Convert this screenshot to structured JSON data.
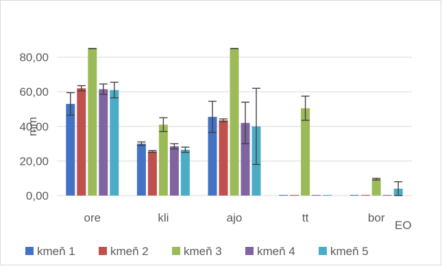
{
  "chart_data": {
    "type": "bar",
    "title": "",
    "xlabel": "EO",
    "ylabel": "mm",
    "ylim": [
      0,
      85
    ],
    "yticks": [
      "0,00",
      "20,00",
      "40,00",
      "60,00",
      "80,00"
    ],
    "ytick_values": [
      0,
      20,
      40,
      60,
      80
    ],
    "grid": true,
    "legend_position": "bottom",
    "categories": [
      "ore",
      "kli",
      "ajo",
      "tt",
      "bor"
    ],
    "series": [
      {
        "name": "kmeň 1",
        "color": "#4472c4",
        "values": [
          53,
          30,
          45.5,
          0,
          0
        ],
        "errors": [
          6.5,
          1,
          9,
          0,
          0
        ]
      },
      {
        "name": "kmeň 2",
        "color": "#c0504d",
        "values": [
          62,
          25.5,
          43.5,
          0,
          0
        ],
        "errors": [
          1.5,
          0.5,
          0.8,
          0,
          0
        ]
      },
      {
        "name": "kmeň 3",
        "color": "#9bbb59",
        "values": [
          85,
          41,
          85,
          50.5,
          9.5
        ],
        "errors": [
          0,
          4,
          0,
          7,
          0.5
        ]
      },
      {
        "name": "kmeň 4",
        "color": "#8064a2",
        "values": [
          61.5,
          28.5,
          42,
          0,
          0
        ],
        "errors": [
          3,
          1.5,
          12,
          0,
          0
        ]
      },
      {
        "name": "kmeň 5",
        "color": "#4bacc6",
        "values": [
          61,
          26.5,
          40,
          0,
          4
        ],
        "errors": [
          4.5,
          1.5,
          22,
          0,
          4
        ]
      }
    ]
  }
}
